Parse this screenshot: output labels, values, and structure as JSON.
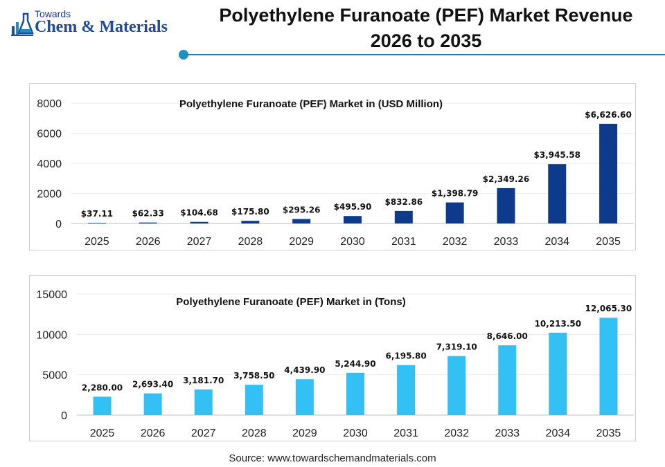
{
  "logo": {
    "small": "Towards",
    "big": "Chem & Materials"
  },
  "header": {
    "title_line1": "Polyethylene Furanoate (PEF) Market Revenue",
    "title_line2": "2026 to 2035"
  },
  "source": "Source: www.towardschemandmaterials.com",
  "colors": {
    "bar_revenue": "#0d3a8a",
    "bar_tons": "#33c1f5",
    "accent": "#1f8fc4"
  },
  "chart_data": [
    {
      "type": "bar",
      "title": "Polyethylene Furanoate (PEF) Market in (USD Million)",
      "categories": [
        "2025",
        "2026",
        "2027",
        "2028",
        "2029",
        "2030",
        "2031",
        "2032",
        "2033",
        "2034",
        "2035"
      ],
      "values": [
        37.11,
        62.33,
        104.68,
        175.8,
        295.26,
        495.9,
        832.86,
        1398.79,
        2349.26,
        3945.58,
        6626.6
      ],
      "data_labels": [
        "$37.11",
        "$62.33",
        "$104.68",
        "$175.80",
        "$295.26",
        "$495.90",
        "$832.86",
        "$1,398.79",
        "$2,349.26",
        "$3,945.58",
        "$6,626.60"
      ],
      "yticks": [
        0,
        2000,
        4000,
        6000,
        8000
      ],
      "ylim": [
        0,
        8000
      ],
      "grid": true
    },
    {
      "type": "bar",
      "title": "Polyethylene Furanoate (PEF) Market in (Tons)",
      "categories": [
        "2025",
        "2026",
        "2027",
        "2028",
        "2029",
        "2030",
        "2031",
        "2032",
        "2033",
        "2034",
        "2035"
      ],
      "values": [
        2280.0,
        2693.4,
        3181.7,
        3758.5,
        4439.9,
        5244.9,
        6195.8,
        7319.1,
        8646.0,
        10213.5,
        12065.3
      ],
      "data_labels": [
        "2,280.00",
        "2,693.40",
        "3,181.70",
        "3,758.50",
        "4,439.90",
        "5,244.90",
        "6,195.80",
        "7,319.10",
        "8,646.00",
        "10,213.50",
        "12,065.30"
      ],
      "yticks": [
        0,
        5000,
        10000,
        15000
      ],
      "ylim": [
        0,
        15000
      ],
      "grid": true
    }
  ]
}
